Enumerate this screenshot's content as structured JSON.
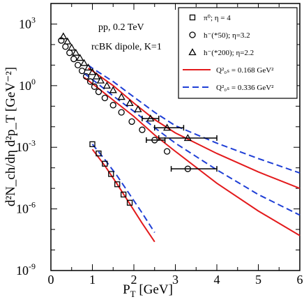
{
  "chart_data": {
    "type": "scatter",
    "x_label": {
      "main": "P",
      "sub": "T",
      "rest": " [GeV]"
    },
    "y_label": {
      "text": "d²N_ch/dη d²p_T [GeV⁻²]"
    },
    "xlim": [
      0,
      6
    ],
    "ylim_log10": [
      -9,
      4
    ],
    "y_scale": "log",
    "x_ticks": [
      0,
      1,
      2,
      3,
      4,
      5,
      6
    ],
    "y_ticks": [
      {
        "exp": -9,
        "label_base": "10",
        "label_exp": "-9"
      },
      {
        "exp": -6,
        "label_base": "10",
        "label_exp": "-6"
      },
      {
        "exp": -3,
        "label_base": "10",
        "label_exp": "-3"
      },
      {
        "exp": 0,
        "label_base": "10",
        "label_exp": "0"
      },
      {
        "exp": 3,
        "label_base": "10",
        "label_exp": "3"
      }
    ],
    "annotations": [
      {
        "text": "pp, 0.2 TeV"
      },
      {
        "text": "rcBK dipole, K=1"
      }
    ],
    "legend_position": "top-right",
    "legend": [
      {
        "marker": "square",
        "text": "π⁰;  η = 4"
      },
      {
        "marker": "circle",
        "text": "h⁻(*50); η=3.2"
      },
      {
        "marker": "triangle",
        "text": "h⁻(*200); η=2.2"
      },
      {
        "line": "solid",
        "color": "#e31a1c",
        "text": "Q²₀ₛ = 0.168 GeV²"
      },
      {
        "line": "dashed",
        "color": "#1f3fd6",
        "text": "Q²₀ₛ = 0.336 GeV²"
      }
    ],
    "series": [
      {
        "marker": "square",
        "points": [
          {
            "x": 1.0,
            "log10y": -2.85
          },
          {
            "x": 1.15,
            "log10y": -3.3
          },
          {
            "x": 1.3,
            "log10y": -3.8
          },
          {
            "x": 1.45,
            "log10y": -4.3
          },
          {
            "x": 1.6,
            "log10y": -4.8
          },
          {
            "x": 1.75,
            "log10y": -5.3
          },
          {
            "x": 1.9,
            "log10y": -5.7
          }
        ]
      },
      {
        "marker": "circle",
        "points": [
          {
            "x": 0.25,
            "log10y": 2.2
          },
          {
            "x": 0.35,
            "log10y": 1.9
          },
          {
            "x": 0.45,
            "log10y": 1.6
          },
          {
            "x": 0.55,
            "log10y": 1.3
          },
          {
            "x": 0.65,
            "log10y": 1.0
          },
          {
            "x": 0.75,
            "log10y": 0.72
          },
          {
            "x": 0.85,
            "log10y": 0.45
          },
          {
            "x": 0.95,
            "log10y": 0.2
          },
          {
            "x": 1.05,
            "log10y": -0.05
          },
          {
            "x": 1.15,
            "log10y": -0.3
          },
          {
            "x": 1.3,
            "log10y": -0.6
          },
          {
            "x": 1.5,
            "log10y": -0.95
          },
          {
            "x": 1.7,
            "log10y": -1.3
          },
          {
            "x": 1.95,
            "log10y": -1.75
          },
          {
            "x": 2.2,
            "log10y": -2.15
          },
          {
            "x": 2.5,
            "log10y": -2.65
          },
          {
            "x": 2.8,
            "log10y": -3.2
          },
          {
            "x": 3.3,
            "log10y": -4.05
          }
        ],
        "xerr_points": [
          {
            "x": 2.5,
            "lo": 2.3,
            "hi": 2.75,
            "log10y": -2.65
          },
          {
            "x": 3.3,
            "lo": 2.9,
            "hi": 4.0,
            "log10y": -4.05
          }
        ]
      },
      {
        "marker": "triangle",
        "points": [
          {
            "x": 0.3,
            "log10y": 2.4
          },
          {
            "x": 0.4,
            "log10y": 2.15
          },
          {
            "x": 0.5,
            "log10y": 1.85
          },
          {
            "x": 0.6,
            "log10y": 1.6
          },
          {
            "x": 0.7,
            "log10y": 1.35
          },
          {
            "x": 0.8,
            "log10y": 1.1
          },
          {
            "x": 0.9,
            "log10y": 0.88
          },
          {
            "x": 1.0,
            "log10y": 0.66
          },
          {
            "x": 1.1,
            "log10y": 0.45
          },
          {
            "x": 1.2,
            "log10y": 0.25
          },
          {
            "x": 1.35,
            "log10y": 0.0
          },
          {
            "x": 1.5,
            "log10y": -0.22
          },
          {
            "x": 1.7,
            "log10y": -0.55
          },
          {
            "x": 1.9,
            "log10y": -0.85
          },
          {
            "x": 2.1,
            "log10y": -1.15
          },
          {
            "x": 2.4,
            "log10y": -1.6
          },
          {
            "x": 2.8,
            "log10y": -2.05
          },
          {
            "x": 3.3,
            "log10y": -2.55
          }
        ],
        "xerr_points": [
          {
            "x": 2.4,
            "lo": 2.2,
            "hi": 2.6,
            "log10y": -1.6
          },
          {
            "x": 2.8,
            "lo": 2.5,
            "hi": 3.2,
            "log10y": -2.05
          },
          {
            "x": 3.3,
            "lo": 2.6,
            "hi": 4.0,
            "log10y": -2.55
          }
        ]
      }
    ],
    "curves": [
      {
        "style": "solid",
        "color": "#e31a1c",
        "points": [
          [
            1.0,
            -3.1
          ],
          [
            1.3,
            -3.9
          ],
          [
            1.6,
            -4.8
          ],
          [
            1.9,
            -5.75
          ],
          [
            2.2,
            -6.7
          ],
          [
            2.5,
            -7.6
          ]
        ]
      },
      {
        "style": "dashed",
        "color": "#1f3fd6",
        "points": [
          [
            1.0,
            -2.85
          ],
          [
            1.3,
            -3.6
          ],
          [
            1.6,
            -4.4
          ],
          [
            1.9,
            -5.3
          ],
          [
            2.2,
            -6.2
          ],
          [
            2.5,
            -7.15
          ]
        ]
      },
      {
        "style": "solid",
        "color": "#e31a1c",
        "points": [
          [
            0.8,
            0.4
          ],
          [
            1.0,
            0.1
          ],
          [
            1.5,
            -0.7
          ],
          [
            2.0,
            -1.5
          ],
          [
            2.5,
            -2.4
          ],
          [
            3.0,
            -3.2
          ],
          [
            4.0,
            -4.75
          ],
          [
            5.0,
            -6.1
          ],
          [
            6.0,
            -7.3
          ]
        ]
      },
      {
        "style": "dashed",
        "color": "#1f3fd6",
        "points": [
          [
            0.8,
            0.6
          ],
          [
            1.0,
            0.3
          ],
          [
            1.5,
            -0.5
          ],
          [
            2.0,
            -1.25
          ],
          [
            2.5,
            -2.05
          ],
          [
            3.0,
            -2.8
          ],
          [
            4.0,
            -4.1
          ],
          [
            5.0,
            -5.3
          ],
          [
            6.0,
            -6.3
          ]
        ]
      },
      {
        "style": "solid",
        "color": "#e31a1c",
        "points": [
          [
            0.9,
            0.85
          ],
          [
            1.0,
            0.72
          ],
          [
            1.5,
            0.0
          ],
          [
            2.0,
            -0.85
          ],
          [
            2.5,
            -1.65
          ],
          [
            3.0,
            -2.3
          ],
          [
            4.0,
            -3.3
          ],
          [
            5.0,
            -4.2
          ],
          [
            6.0,
            -5.0
          ]
        ]
      },
      {
        "style": "dashed",
        "color": "#1f3fd6",
        "points": [
          [
            0.9,
            1.0
          ],
          [
            1.0,
            0.85
          ],
          [
            1.5,
            0.2
          ],
          [
            2.0,
            -0.55
          ],
          [
            2.5,
            -1.3
          ],
          [
            3.0,
            -1.95
          ],
          [
            4.0,
            -2.8
          ],
          [
            5.0,
            -3.55
          ],
          [
            6.0,
            -4.25
          ]
        ]
      }
    ]
  }
}
